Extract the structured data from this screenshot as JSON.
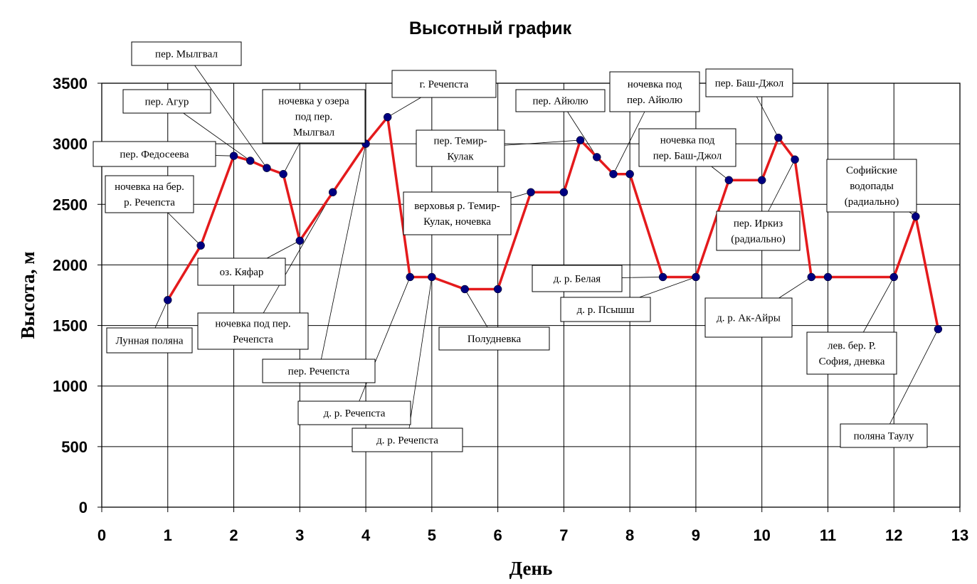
{
  "chart_data": {
    "type": "line",
    "title": "Высотный график",
    "xlabel": "День",
    "ylabel": "Высота, м",
    "xlim": [
      0,
      13
    ],
    "ylim": [
      0,
      3500
    ],
    "x_ticks": [
      "0",
      "1",
      "2",
      "3",
      "4",
      "5",
      "6",
      "7",
      "8",
      "9",
      "10",
      "11",
      "12",
      "13"
    ],
    "y_ticks": [
      "0",
      "500",
      "1000",
      "1500",
      "2000",
      "2500",
      "3000",
      "3500"
    ],
    "grid": true,
    "line_color": "#e41a1c",
    "marker_color": "#000080",
    "points": [
      {
        "x": 1.0,
        "y": 1710
      },
      {
        "x": 1.5,
        "y": 2160
      },
      {
        "x": 2.0,
        "y": 2900
      },
      {
        "x": 2.25,
        "y": 2860
      },
      {
        "x": 2.5,
        "y": 2800
      },
      {
        "x": 2.75,
        "y": 2750
      },
      {
        "x": 3.0,
        "y": 2200
      },
      {
        "x": 3.5,
        "y": 2600
      },
      {
        "x": 4.0,
        "y": 3000
      },
      {
        "x": 4.33,
        "y": 3220
      },
      {
        "x": 4.67,
        "y": 1900
      },
      {
        "x": 5.0,
        "y": 1900
      },
      {
        "x": 5.5,
        "y": 1800
      },
      {
        "x": 6.0,
        "y": 1800
      },
      {
        "x": 6.5,
        "y": 2600
      },
      {
        "x": 7.0,
        "y": 2600
      },
      {
        "x": 7.25,
        "y": 3030
      },
      {
        "x": 7.5,
        "y": 2890
      },
      {
        "x": 7.75,
        "y": 2750
      },
      {
        "x": 8.0,
        "y": 2750
      },
      {
        "x": 8.5,
        "y": 1900
      },
      {
        "x": 9.0,
        "y": 1900
      },
      {
        "x": 9.5,
        "y": 2700
      },
      {
        "x": 10.0,
        "y": 2700
      },
      {
        "x": 10.25,
        "y": 3050
      },
      {
        "x": 10.5,
        "y": 2870
      },
      {
        "x": 10.75,
        "y": 1900
      },
      {
        "x": 11.0,
        "y": 1900
      },
      {
        "x": 12.0,
        "y": 1900
      },
      {
        "x": 12.33,
        "y": 2400
      },
      {
        "x": 12.67,
        "y": 1470
      }
    ],
    "annotations": [
      {
        "lines": [
          "Лунная поляна"
        ],
        "point": 0
      },
      {
        "lines": [
          "ночевка на бер.",
          "р. Речепста"
        ],
        "point": 1
      },
      {
        "lines": [
          "пер. Федосеева"
        ],
        "point": 2
      },
      {
        "lines": [
          "пер. Агур"
        ],
        "point": 3
      },
      {
        "lines": [
          "пер. Мылгвал"
        ],
        "point": 4
      },
      {
        "lines": [
          "ночевка у озера",
          "под пер.",
          "Мылгвал"
        ],
        "point": 5
      },
      {
        "lines": [
          "оз. Кяфар"
        ],
        "point": 6
      },
      {
        "lines": [
          "ночевка под пер.",
          "Речепста"
        ],
        "point": 7
      },
      {
        "lines": [
          "пер. Речепста"
        ],
        "point": 8
      },
      {
        "lines": [
          "г. Речепста"
        ],
        "point": 9
      },
      {
        "lines": [
          "д. р. Речепста"
        ],
        "point": 10
      },
      {
        "lines": [
          "д. р. Речепста"
        ],
        "point": 11
      },
      {
        "lines": [
          "Полудневка"
        ],
        "point": 12
      },
      {
        "lines": [
          "верховья р. Темир-",
          "Кулак, ночевка"
        ],
        "point": 14
      },
      {
        "lines": [
          "пер. Темир-",
          "Кулак"
        ],
        "point": 16
      },
      {
        "lines": [
          "пер. Айюлю"
        ],
        "point": 17
      },
      {
        "lines": [
          "ночевка под",
          "пер. Айюлю"
        ],
        "point": 18
      },
      {
        "lines": [
          "д. р. Белая"
        ],
        "point": 20
      },
      {
        "lines": [
          "д. р. Псышш"
        ],
        "point": 21
      },
      {
        "lines": [
          "ночевка под",
          "пер. Баш-Джол"
        ],
        "point": 22
      },
      {
        "lines": [
          "пер. Баш-Джол"
        ],
        "point": 24
      },
      {
        "lines": [
          "пер. Иркиз",
          "(радиально)"
        ],
        "point": 25
      },
      {
        "lines": [
          "д. р. Ак-Айры"
        ],
        "point": 26
      },
      {
        "lines": [
          "лев. бер. Р.",
          "София, дневка"
        ],
        "point": 28
      },
      {
        "lines": [
          "Софийские",
          "водопады",
          "(радиально)"
        ],
        "point": 29
      },
      {
        "lines": [
          "поляна Таулу"
        ],
        "point": 30
      }
    ]
  }
}
